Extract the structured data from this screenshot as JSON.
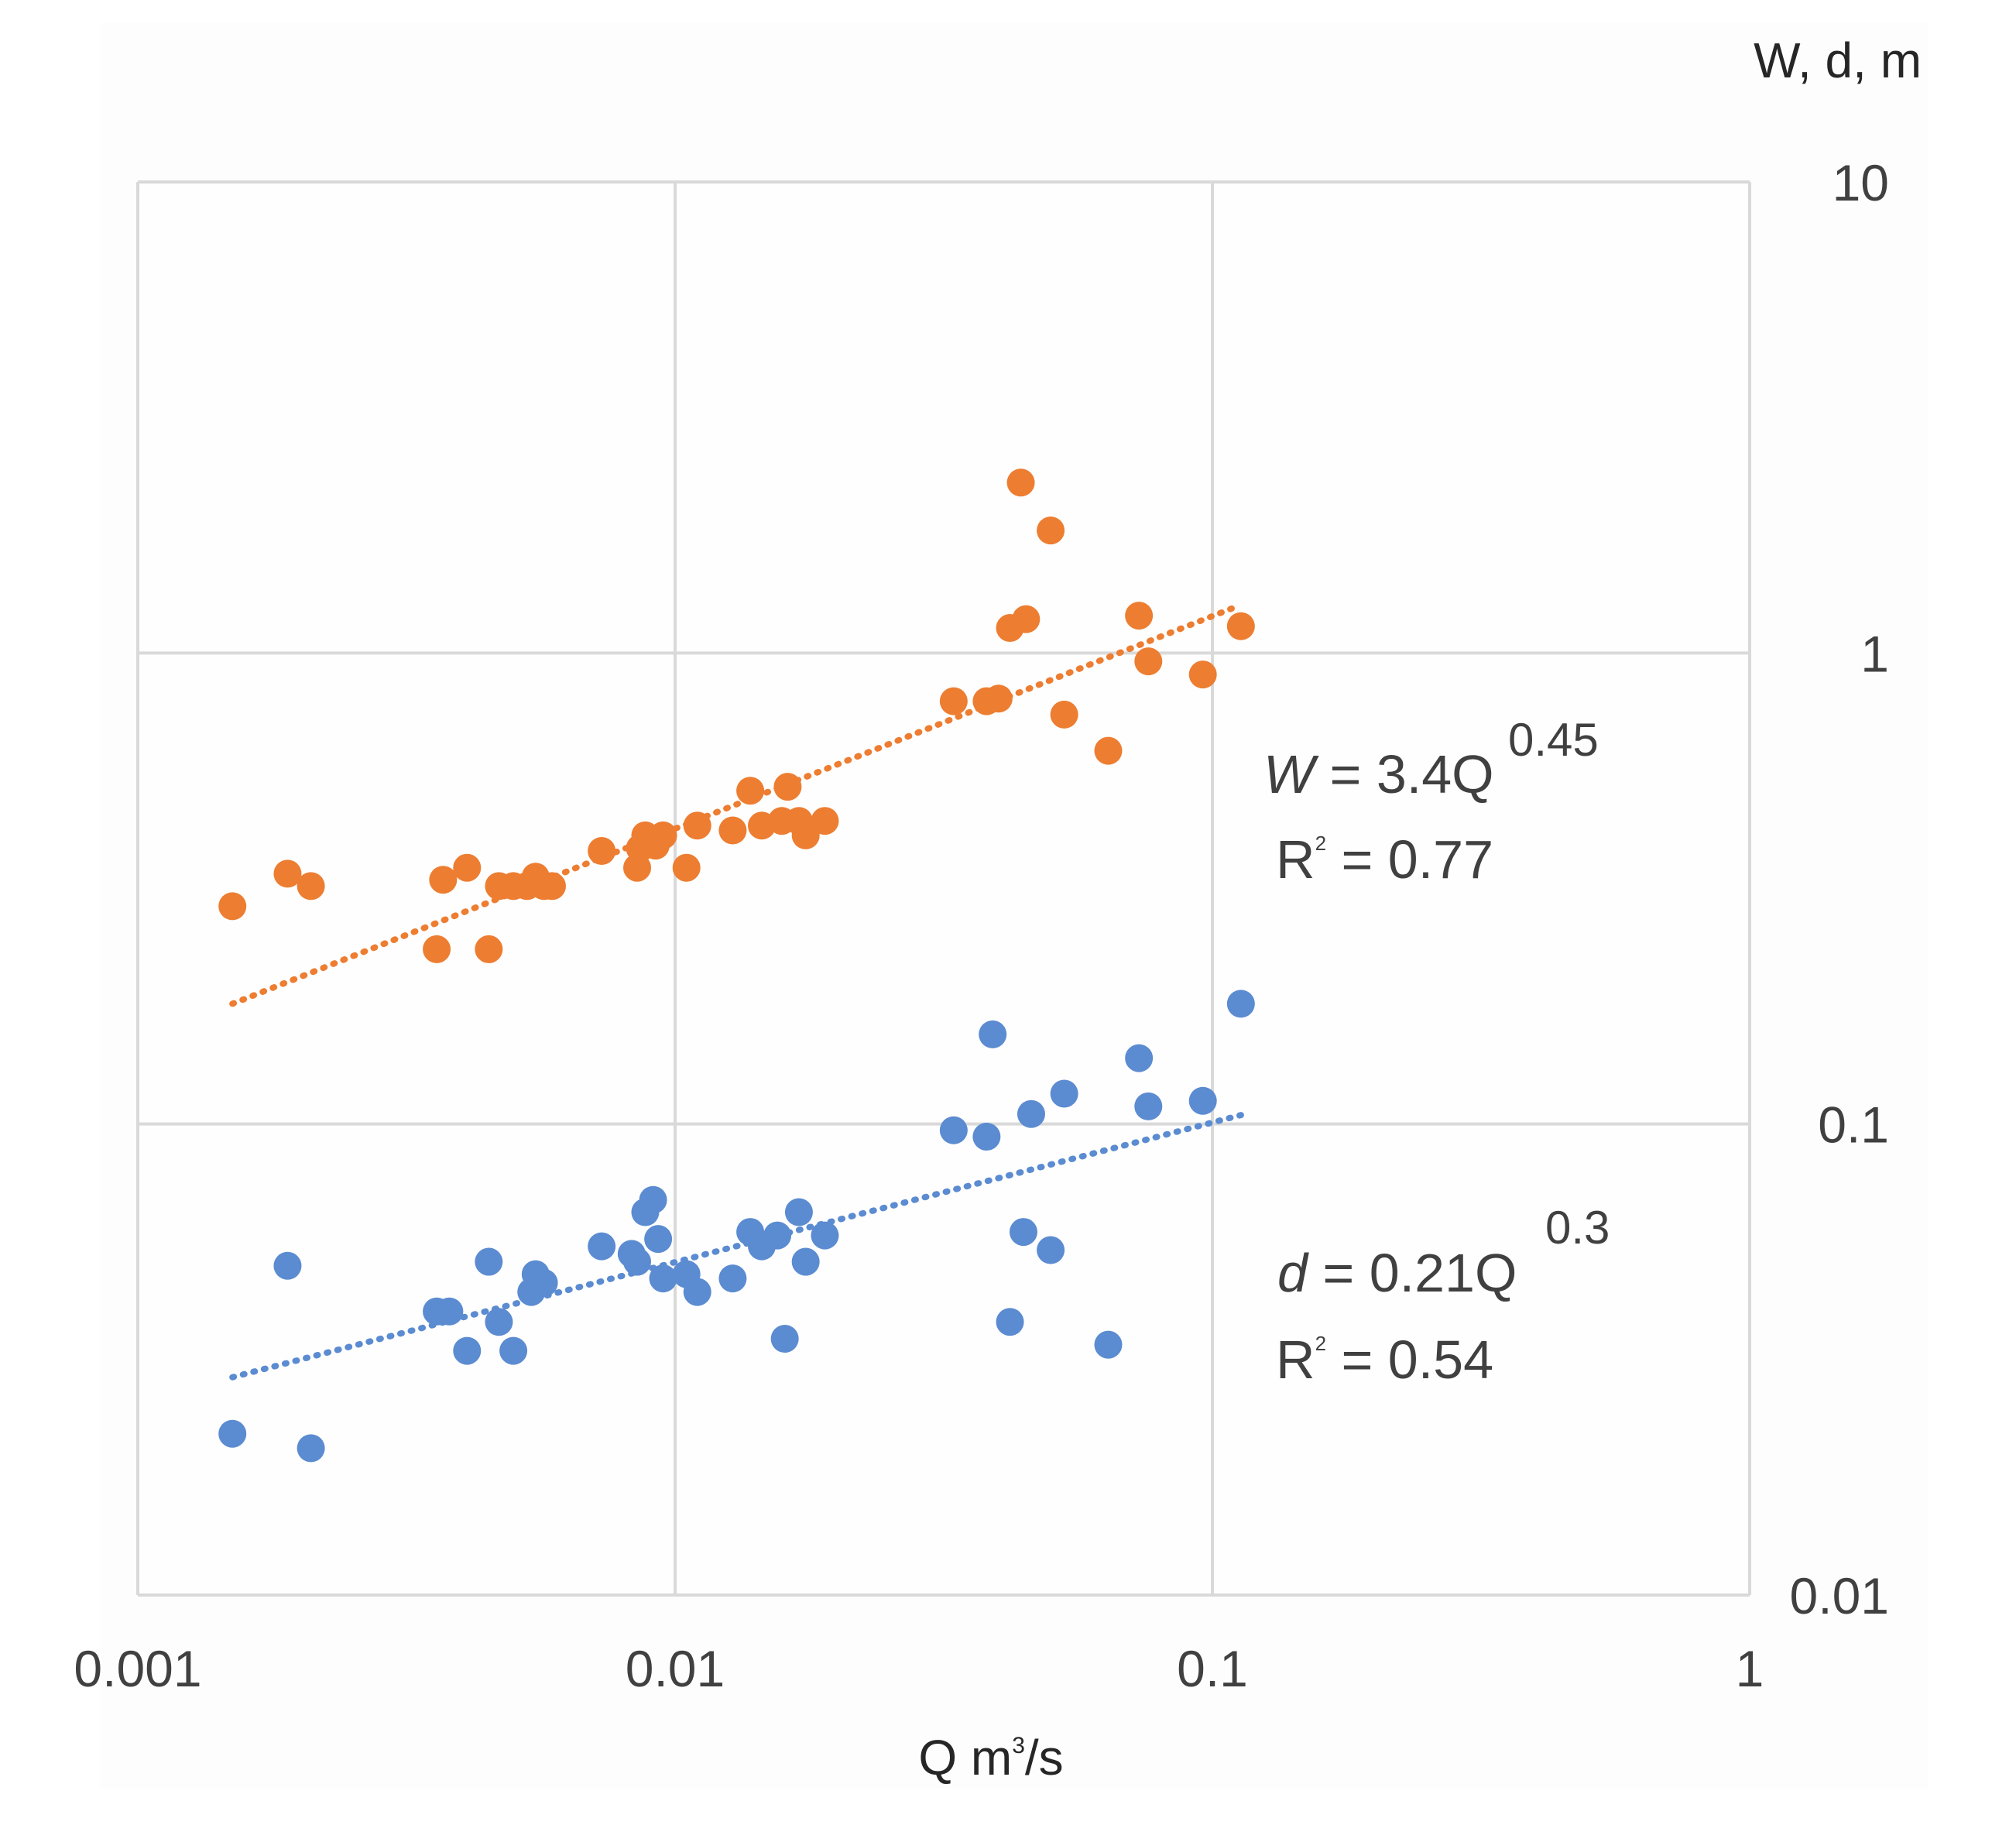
{
  "chart_data": {
    "type": "scatter",
    "scale": "log-log",
    "xlabel": "Q m",
    "xlabel_sup": "3",
    "xlabel_tail": "/s",
    "ylabel": "W, d, m",
    "xlim": [
      0.001,
      1
    ],
    "ylim": [
      0.01,
      10
    ],
    "x_ticks": [
      0.001,
      0.01,
      0.1,
      1
    ],
    "x_tick_labels": [
      "0.001",
      "0.01",
      "0.1",
      "1"
    ],
    "y_ticks": [
      0.01,
      0.1,
      1,
      10
    ],
    "y_tick_labels": [
      "0.01",
      "0.1",
      "1",
      "10"
    ],
    "grid": true,
    "series": [
      {
        "name": "W",
        "color": "#ed7d31",
        "points": [
          [
            0.0015,
            0.29
          ],
          [
            0.0019,
            0.34
          ],
          [
            0.0021,
            0.32
          ],
          [
            0.0037,
            0.33
          ],
          [
            0.0041,
            0.35
          ],
          [
            0.0036,
            0.235
          ],
          [
            0.0045,
            0.235
          ],
          [
            0.0047,
            0.32
          ],
          [
            0.005,
            0.32
          ],
          [
            0.0053,
            0.32
          ],
          [
            0.0055,
            0.335
          ],
          [
            0.0057,
            0.32
          ],
          [
            0.0059,
            0.32
          ],
          [
            0.0073,
            0.38
          ],
          [
            0.0085,
            0.35
          ],
          [
            0.0086,
            0.385
          ],
          [
            0.0088,
            0.41
          ],
          [
            0.0092,
            0.39
          ],
          [
            0.0095,
            0.41
          ],
          [
            0.0105,
            0.35
          ],
          [
            0.011,
            0.43
          ],
          [
            0.0128,
            0.42
          ],
          [
            0.0138,
            0.51
          ],
          [
            0.0145,
            0.43
          ],
          [
            0.0158,
            0.44
          ],
          [
            0.0162,
            0.52
          ],
          [
            0.017,
            0.44
          ],
          [
            0.0175,
            0.41
          ],
          [
            0.019,
            0.44
          ],
          [
            0.033,
            0.79
          ],
          [
            0.038,
            0.79
          ],
          [
            0.04,
            0.8
          ],
          [
            0.042,
            1.13
          ],
          [
            0.045,
            1.18
          ],
          [
            0.044,
            2.3
          ],
          [
            0.05,
            1.82
          ],
          [
            0.053,
            0.74
          ],
          [
            0.064,
            0.62
          ],
          [
            0.073,
            1.2
          ],
          [
            0.076,
            0.96
          ],
          [
            0.096,
            0.9
          ],
          [
            0.113,
            1.14
          ]
        ],
        "trendline": {
          "x": [
            0.0015,
            0.11
          ],
          "y": [
            0.18,
            1.25
          ]
        },
        "equation_var": "W",
        "equation_body": " = 3.4Q",
        "equation_exp": "0.45",
        "r2_prefix": "R",
        "r2_sup": "2",
        "r2_value": " = 0.77"
      },
      {
        "name": "d",
        "color": "#5b8bd1",
        "points": [
          [
            0.0015,
            0.022
          ],
          [
            0.0019,
            0.05
          ],
          [
            0.0021,
            0.0205
          ],
          [
            0.0036,
            0.04
          ],
          [
            0.0038,
            0.04
          ],
          [
            0.0041,
            0.033
          ],
          [
            0.0045,
            0.051
          ],
          [
            0.0047,
            0.038
          ],
          [
            0.005,
            0.033
          ],
          [
            0.0054,
            0.044
          ],
          [
            0.0055,
            0.048
          ],
          [
            0.0057,
            0.046
          ],
          [
            0.0073,
            0.055
          ],
          [
            0.0083,
            0.053
          ],
          [
            0.0085,
            0.051
          ],
          [
            0.0088,
            0.065
          ],
          [
            0.0091,
            0.069
          ],
          [
            0.0093,
            0.057
          ],
          [
            0.0095,
            0.047
          ],
          [
            0.0105,
            0.048
          ],
          [
            0.011,
            0.044
          ],
          [
            0.0128,
            0.047
          ],
          [
            0.0138,
            0.059
          ],
          [
            0.0145,
            0.055
          ],
          [
            0.0155,
            0.058
          ],
          [
            0.016,
            0.035
          ],
          [
            0.017,
            0.065
          ],
          [
            0.0175,
            0.051
          ],
          [
            0.019,
            0.058
          ],
          [
            0.033,
            0.097
          ],
          [
            0.038,
            0.094
          ],
          [
            0.039,
            0.155
          ],
          [
            0.042,
            0.038
          ],
          [
            0.0445,
            0.059
          ],
          [
            0.046,
            0.105
          ],
          [
            0.05,
            0.054
          ],
          [
            0.053,
            0.116
          ],
          [
            0.064,
            0.034
          ],
          [
            0.073,
            0.138
          ],
          [
            0.076,
            0.109
          ],
          [
            0.096,
            0.112
          ],
          [
            0.113,
            0.18
          ]
        ],
        "trendline": {
          "x": [
            0.0015,
            0.115
          ],
          "y": [
            0.029,
            0.105
          ]
        },
        "equation_var": "d",
        "equation_body": " = 0.21Q",
        "equation_exp": "0.3",
        "r2_prefix": "R",
        "r2_sup": "2",
        "r2_value": " = 0.54"
      }
    ]
  }
}
